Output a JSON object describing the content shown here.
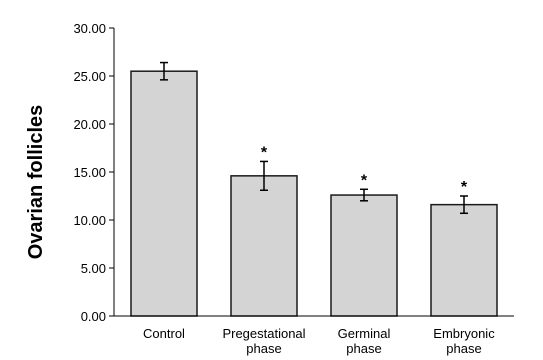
{
  "chart_data": {
    "type": "bar",
    "categories": [
      [
        "Control"
      ],
      [
        "Pregestational",
        "phase"
      ],
      [
        "Germinal",
        "phase"
      ],
      [
        "Embryonic",
        "phase"
      ]
    ],
    "values": [
      25.5,
      14.6,
      12.6,
      11.6
    ],
    "errors": [
      0.9,
      1.5,
      0.6,
      0.9
    ],
    "annotations": [
      "",
      "*",
      "*",
      "*"
    ],
    "ylabel": "Ovarian follicles",
    "xlabel": "",
    "ylim": [
      0,
      30
    ],
    "yticks": [
      "0.00",
      "5.00",
      "10.00",
      "15.00",
      "20.00",
      "25.00",
      "30.00"
    ],
    "bar_color": "#d4d4d4",
    "bar_edge_color": "#1a1a1a",
    "grid": false
  }
}
